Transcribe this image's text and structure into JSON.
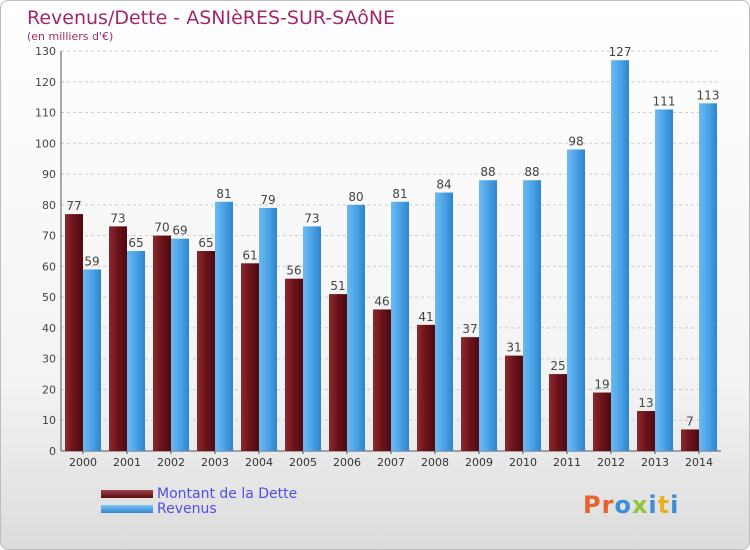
{
  "chart_data": {
    "type": "bar",
    "title": "Revenus/Dette - ASNIèRES-SUR-SAôNE",
    "subtitle": "(en milliers d'€)",
    "categories": [
      "2000",
      "2001",
      "2002",
      "2003",
      "2004",
      "2005",
      "2006",
      "2007",
      "2008",
      "2009",
      "2010",
      "2011",
      "2012",
      "2013",
      "2014"
    ],
    "series": [
      {
        "name": "Montant de la Dette",
        "color": "#7a1f26",
        "values": [
          77,
          73,
          70,
          65,
          61,
          56,
          51,
          46,
          41,
          37,
          31,
          25,
          19,
          13,
          7
        ]
      },
      {
        "name": "Revenus",
        "color": "#4aa3e6",
        "values": [
          59,
          65,
          69,
          81,
          79,
          73,
          80,
          81,
          84,
          88,
          88,
          98,
          127,
          111,
          113
        ]
      }
    ],
    "ylim": [
      0,
      130
    ],
    "yticks": [
      0,
      10,
      20,
      30,
      40,
      50,
      60,
      70,
      80,
      90,
      100,
      110,
      120,
      130
    ],
    "grid": true,
    "legend_position": "bottom-left"
  },
  "logo": {
    "text": "Proxiti",
    "colors": [
      "#e8612c",
      "#e8612c",
      "#3a8fd8",
      "#8cc63f",
      "#3a8fd8",
      "#e8b020",
      "#3a8fd8"
    ]
  }
}
